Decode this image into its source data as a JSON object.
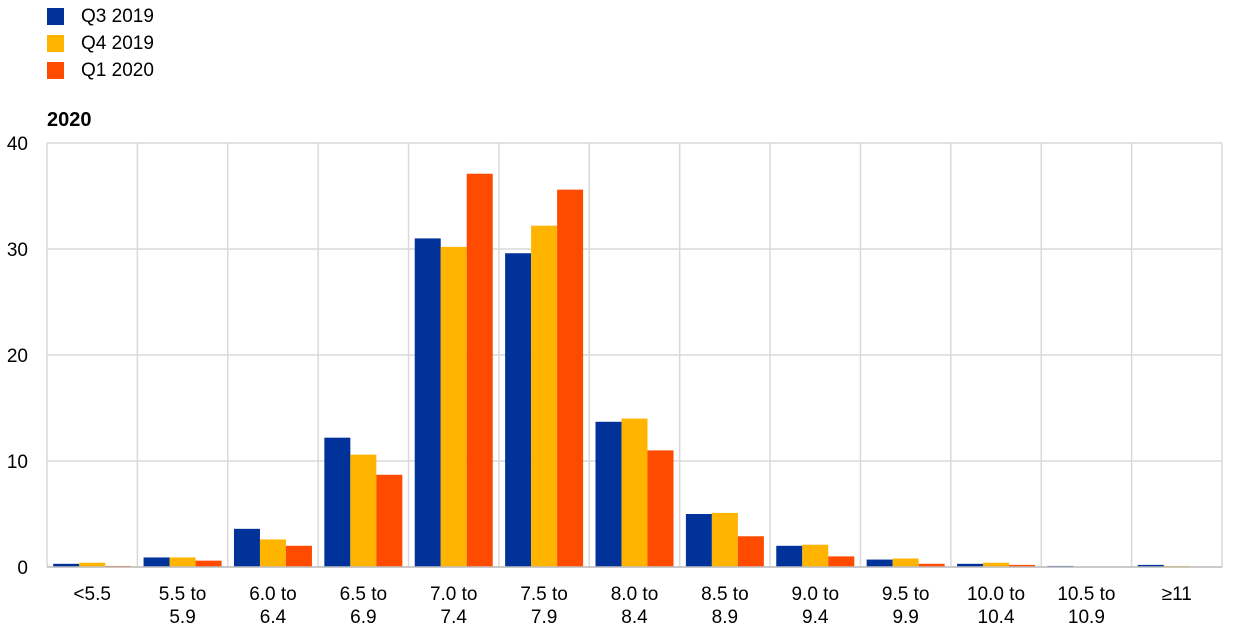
{
  "legend": [
    {
      "label": "Q3 2019",
      "color": "#003299"
    },
    {
      "label": "Q4 2019",
      "color": "#FFB400"
    },
    {
      "label": "Q1 2020",
      "color": "#FF4B00"
    }
  ],
  "panel_title": "2020",
  "chart_data": {
    "type": "bar",
    "title": "",
    "xlabel": "",
    "ylabel": "",
    "ylim": [
      0,
      40
    ],
    "yticks": [
      0,
      10,
      20,
      30,
      40
    ],
    "grid": true,
    "legend_position": "top-left",
    "categories": [
      [
        "<5.5"
      ],
      [
        "5.5 to",
        "5.9"
      ],
      [
        "6.0 to",
        "6.4"
      ],
      [
        "6.5 to",
        "6.9"
      ],
      [
        "7.0 to",
        "7.4"
      ],
      [
        "7.5 to",
        "7.9"
      ],
      [
        "8.0 to",
        "8.4"
      ],
      [
        "8.5 to",
        "8.9"
      ],
      [
        "9.0 to",
        "9.4"
      ],
      [
        "9.5 to",
        "9.9"
      ],
      [
        "10.0 to",
        "10.4"
      ],
      [
        "10.5 to",
        "10.9"
      ],
      [
        "≥11"
      ]
    ],
    "series": [
      {
        "name": "Q3 2019",
        "color": "#003299",
        "values": [
          0.3,
          0.9,
          3.6,
          12.2,
          31.0,
          29.6,
          13.7,
          5.0,
          2.0,
          0.7,
          0.3,
          0.1,
          0.2
        ]
      },
      {
        "name": "Q4 2019",
        "color": "#FFB400",
        "values": [
          0.4,
          0.9,
          2.6,
          10.6,
          30.2,
          32.2,
          14.0,
          5.1,
          2.1,
          0.8,
          0.4,
          0.05,
          0.1
        ]
      },
      {
        "name": "Q1 2020",
        "color": "#FF4B00",
        "values": [
          0.1,
          0.6,
          2.0,
          8.7,
          37.1,
          35.6,
          11.0,
          2.9,
          1.0,
          0.3,
          0.2,
          0.05,
          0.05
        ]
      }
    ]
  }
}
